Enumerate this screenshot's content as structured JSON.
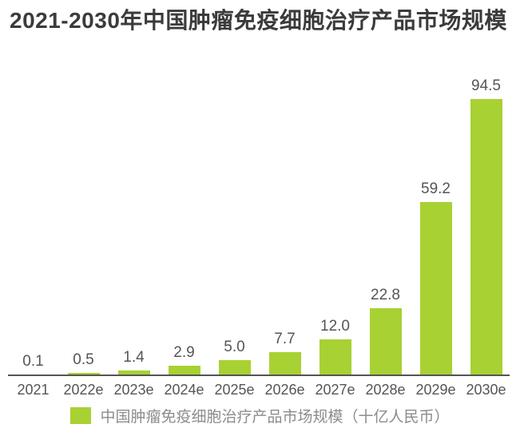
{
  "chart_data": {
    "type": "bar",
    "title": "2021-2030年中国肿瘤免疫细胞治疗产品市场规模",
    "categories": [
      "2021",
      "2022e",
      "2023e",
      "2024e",
      "2025e",
      "2026e",
      "2027e",
      "2028e",
      "2029e",
      "2030e"
    ],
    "values": [
      0.1,
      0.5,
      1.4,
      2.9,
      5.0,
      7.7,
      12.0,
      22.8,
      59.2,
      94.5
    ],
    "value_label_format": "one_decimal",
    "xlabel": "",
    "ylabel": "",
    "ylim": [
      0,
      100
    ],
    "grid": false,
    "y_axis_shown": false,
    "legend_position": "bottom-center",
    "legend": [
      "中国肿瘤免疫细胞治疗产品市场规模（十亿人民币）"
    ],
    "bar_color": "#a8d133",
    "axis_line_color": "#545454",
    "value_label_color": "#555555",
    "tick_label_color": "#555555",
    "legend_text_color": "#8c8c8c",
    "title_color": "#3b3b3b"
  }
}
